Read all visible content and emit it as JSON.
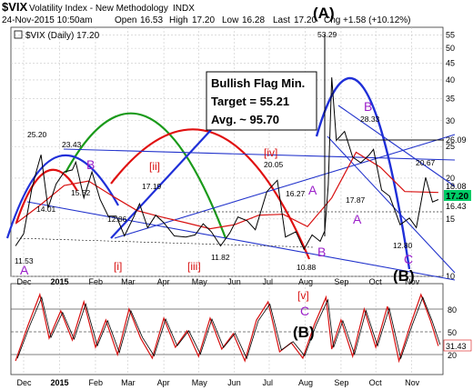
{
  "header": {
    "symbol": "$VIX",
    "name": "Volatility Index - New Methodology",
    "exchange": "INDX",
    "date": "24-Nov-2015 10:50am",
    "open_label": "Open",
    "open": "16.53",
    "high_label": "High",
    "high": "17.20",
    "low_label": "Low",
    "low": "16.28",
    "last_label": "Last",
    "last": "17.20",
    "chg_label": "Chg",
    "chg": "+1.58 (+10.12%)",
    "legend_label": "$VIX (Daily) 17.20"
  },
  "annotation_box": {
    "line1": "Bullish Flag Min.",
    "line2": "Target = 55.21",
    "line3": "Avg. ~ 95.70"
  },
  "colors": {
    "price": "#000000",
    "ma": "#d81010",
    "trendline": "#2233cc",
    "arc_blue": "#1f2fd8",
    "arc_green": "#1a9a1a",
    "arc_red": "#e01010",
    "wave_purple": "#9b1fc9",
    "wave_red": "#d81010",
    "osc_line": "#d81010",
    "price_tag_bg": "#00cc66"
  },
  "chart_data": [
    {
      "type": "line",
      "title": "$VIX (Daily) 17.20",
      "scale": "log",
      "ylim": [
        10,
        58
      ],
      "y_ticks": [
        10,
        15,
        20,
        25,
        30,
        35,
        40,
        45,
        50,
        55
      ],
      "x_ticks": [
        "Dec",
        "2015",
        "Feb",
        "Mar",
        "Apr",
        "May",
        "Jun",
        "Jul",
        "Aug",
        "Sep",
        "Oct",
        "Nov"
      ],
      "price_tags": [
        "26.09",
        "18.08",
        "17.20",
        "16.43"
      ],
      "series": [
        {
          "x": [
            "2014-11-24",
            "2014-12-01",
            "2014-12-08",
            "2014-12-12",
            "2014-12-16",
            "2014-12-22",
            "2014-12-29",
            "2015-01-05",
            "2015-01-12",
            "2015-01-15",
            "2015-01-22",
            "2015-01-29",
            "2015-02-05",
            "2015-02-12",
            "2015-02-19",
            "2015-02-26",
            "2015-03-06",
            "2015-03-11",
            "2015-03-18",
            "2015-03-25",
            "2015-04-01",
            "2015-04-10",
            "2015-04-20",
            "2015-04-28",
            "2015-05-05",
            "2015-05-12",
            "2015-05-20",
            "2015-05-28",
            "2015-06-04",
            "2015-06-12",
            "2015-06-19",
            "2015-06-29",
            "2015-07-08",
            "2015-07-15",
            "2015-07-24",
            "2015-07-31",
            "2015-08-07",
            "2015-08-14",
            "2015-08-18",
            "2015-08-21",
            "2015-08-24",
            "2015-08-28",
            "2015-09-04",
            "2015-09-11",
            "2015-09-18",
            "2015-09-25",
            "2015-09-29",
            "2015-10-06",
            "2015-10-13",
            "2015-10-22",
            "2015-10-30",
            "2015-11-05",
            "2015-11-13",
            "2015-11-19",
            "2015-11-24"
          ],
          "values": [
            12.4,
            13.5,
            18.5,
            21.0,
            23.6,
            16.2,
            19.2,
            20.9,
            21.2,
            22.4,
            17.4,
            20.9,
            17.2,
            15.3,
            15.3,
            13.3,
            15.2,
            16.7,
            14.1,
            15.4,
            14.6,
            13.3,
            13.2,
            13.4,
            14.5,
            13.7,
            12.4,
            13.6,
            15.2,
            14.8,
            13.9,
            18.2,
            19.7,
            13.2,
            13.7,
            12.1,
            13.4,
            12.8,
            13.8,
            19.1,
            40.7,
            26.1,
            27.8,
            23.2,
            22.3,
            23.5,
            24.5,
            18.4,
            17.6,
            14.4,
            15.1,
            14.1,
            20.1,
            16.9,
            17.2
          ]
        }
      ],
      "ma_series": {
        "x": [
          "2014-11-24",
          "2014-12-15",
          "2015-01-05",
          "2015-01-26",
          "2015-02-16",
          "2015-03-09",
          "2015-03-30",
          "2015-04-20",
          "2015-05-11",
          "2015-06-01",
          "2015-06-22",
          "2015-07-13",
          "2015-08-03",
          "2015-08-24",
          "2015-09-14",
          "2015-10-05",
          "2015-10-26",
          "2015-11-24"
        ],
        "values": [
          14.5,
          16.5,
          19.0,
          19.6,
          17.6,
          15.9,
          15.2,
          14.6,
          14.0,
          14.4,
          15.4,
          15.5,
          14.2,
          17.4,
          24.0,
          21.6,
          18.2,
          18.08
        ]
      },
      "value_labels": [
        "25.20",
        "23.43",
        "15.52",
        "14.01",
        "11.53",
        "12.86",
        "17.19",
        "11.82",
        "20.05",
        "16.27",
        "10.88",
        "53.29",
        "28.33",
        "17.87",
        "20.67",
        "12.80"
      ],
      "wave_labels": {
        "purple": [
          "B",
          "A",
          "A",
          "B",
          "B",
          "A",
          "C"
        ],
        "red": [
          "[ii]",
          "[i]",
          "[iii]",
          "[iv]"
        ],
        "black": [
          "(A)",
          "(B)"
        ]
      }
    },
    {
      "type": "line",
      "title": "",
      "ylim": [
        0,
        100
      ],
      "y_ticks": [
        20,
        31.43,
        50,
        80
      ],
      "price_tags": [
        "31.43"
      ],
      "x_ticks": [
        "Dec",
        "2015",
        "Feb",
        "Mar",
        "Apr",
        "May",
        "Jun",
        "Jul",
        "Aug",
        "Sep",
        "Oct",
        "Nov"
      ],
      "series": [
        {
          "x": [
            "2014-11-24",
            "2014-12-05",
            "2014-12-15",
            "2014-12-23",
            "2015-01-02",
            "2015-01-12",
            "2015-01-22",
            "2015-02-01",
            "2015-02-10",
            "2015-02-20",
            "2015-03-02",
            "2015-03-12",
            "2015-03-22",
            "2015-04-01",
            "2015-04-11",
            "2015-04-21",
            "2015-05-01",
            "2015-05-11",
            "2015-05-21",
            "2015-05-31",
            "2015-06-10",
            "2015-06-20",
            "2015-06-30",
            "2015-07-10",
            "2015-07-20",
            "2015-07-30",
            "2015-08-09",
            "2015-08-19",
            "2015-08-24",
            "2015-09-01",
            "2015-09-11",
            "2015-09-21",
            "2015-10-01",
            "2015-10-11",
            "2015-10-21",
            "2015-10-31",
            "2015-11-09",
            "2015-11-17",
            "2015-11-24"
          ],
          "values": [
            15,
            55,
            88,
            40,
            70,
            38,
            80,
            30,
            60,
            22,
            72,
            40,
            18,
            62,
            30,
            48,
            20,
            62,
            28,
            45,
            15,
            60,
            80,
            25,
            35,
            18,
            55,
            85,
            28,
            60,
            20,
            72,
            30,
            75,
            15,
            55,
            88,
            60,
            31.43
          ]
        }
      ],
      "bracket_labels": {
        "red": "[v]",
        "purple": "C",
        "black": "(B)"
      }
    }
  ]
}
